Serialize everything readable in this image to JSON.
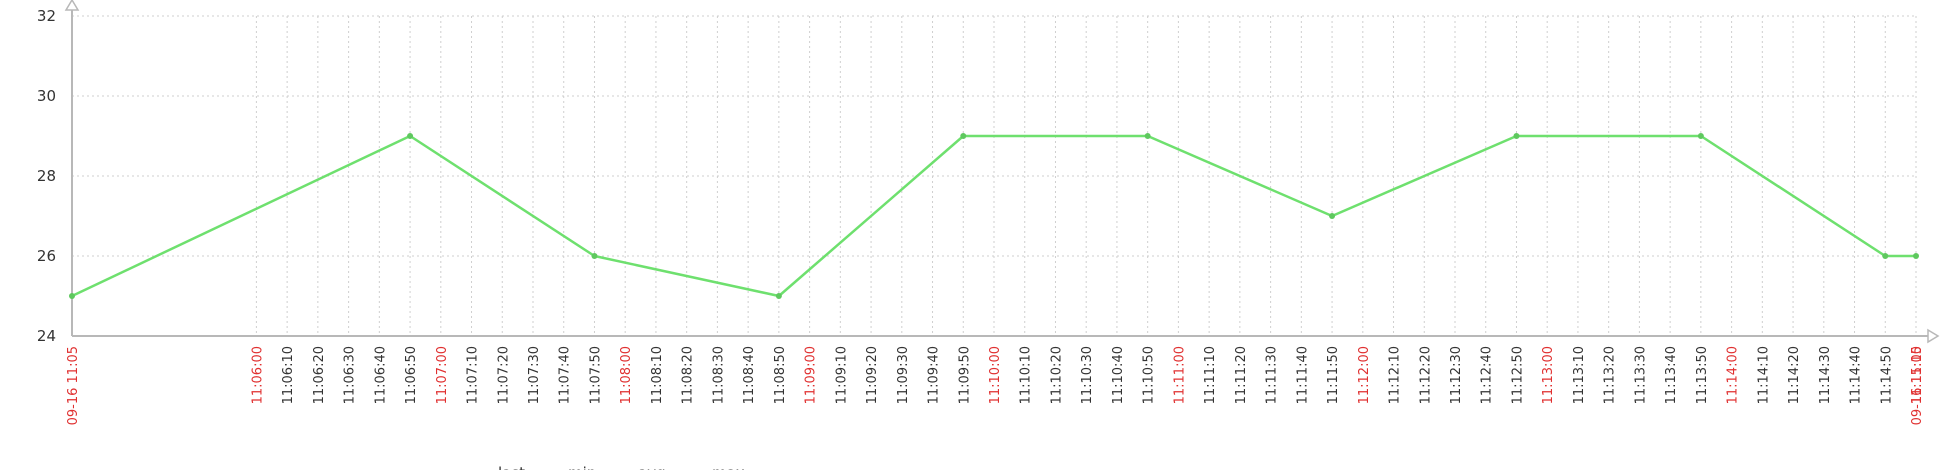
{
  "chart_data": {
    "type": "line",
    "title": "",
    "xlabel": "",
    "ylabel": "",
    "ylim": [
      24,
      32
    ],
    "yticks": [
      24,
      26,
      28,
      30,
      32
    ],
    "grid": true,
    "x_tick_labels": [
      "09-16 11:05",
      "11:06:00",
      "11:06:10",
      "11:06:20",
      "11:06:30",
      "11:06:40",
      "11:06:50",
      "11:07:00",
      "11:07:10",
      "11:07:20",
      "11:07:30",
      "11:07:40",
      "11:07:50",
      "11:08:00",
      "11:08:10",
      "11:08:20",
      "11:08:30",
      "11:08:40",
      "11:08:50",
      "11:09:00",
      "11:09:10",
      "11:09:20",
      "11:09:30",
      "11:09:40",
      "11:09:50",
      "11:10:00",
      "11:10:10",
      "11:10:20",
      "11:10:30",
      "11:10:40",
      "11:10:50",
      "11:11:00",
      "11:11:10",
      "11:11:20",
      "11:11:30",
      "11:11:40",
      "11:11:50",
      "11:12:00",
      "11:12:10",
      "11:12:20",
      "11:12:30",
      "11:12:40",
      "11:12:50",
      "11:13:00",
      "11:13:10",
      "11:13:20",
      "11:13:30",
      "11:13:40",
      "11:13:50",
      "11:14:00",
      "11:14:10",
      "11:14:20",
      "11:14:30",
      "11:14:40",
      "11:14:50",
      "11:15:00",
      "09-16 11:15"
    ],
    "major_tick_labels": [
      "09-16 11:05",
      "11:06:00",
      "11:07:00",
      "11:08:00",
      "11:09:00",
      "11:10:00",
      "11:11:00",
      "11:12:00",
      "11:13:00",
      "11:14:00",
      "11:15:00",
      "09-16 11:15"
    ],
    "series": [
      {
        "color": "#6ee06e",
        "x": [
          "11:05:00",
          "11:06:50",
          "11:07:50",
          "11:08:50",
          "11:09:50",
          "11:10:50",
          "11:11:50",
          "11:12:50",
          "11:13:50",
          "11:14:50",
          "11:15:00"
        ],
        "y": [
          25,
          29,
          26,
          25,
          29,
          29,
          27,
          29,
          29,
          26,
          26
        ]
      }
    ],
    "legend_columns": [
      "last",
      "min",
      "avg",
      "max"
    ]
  }
}
